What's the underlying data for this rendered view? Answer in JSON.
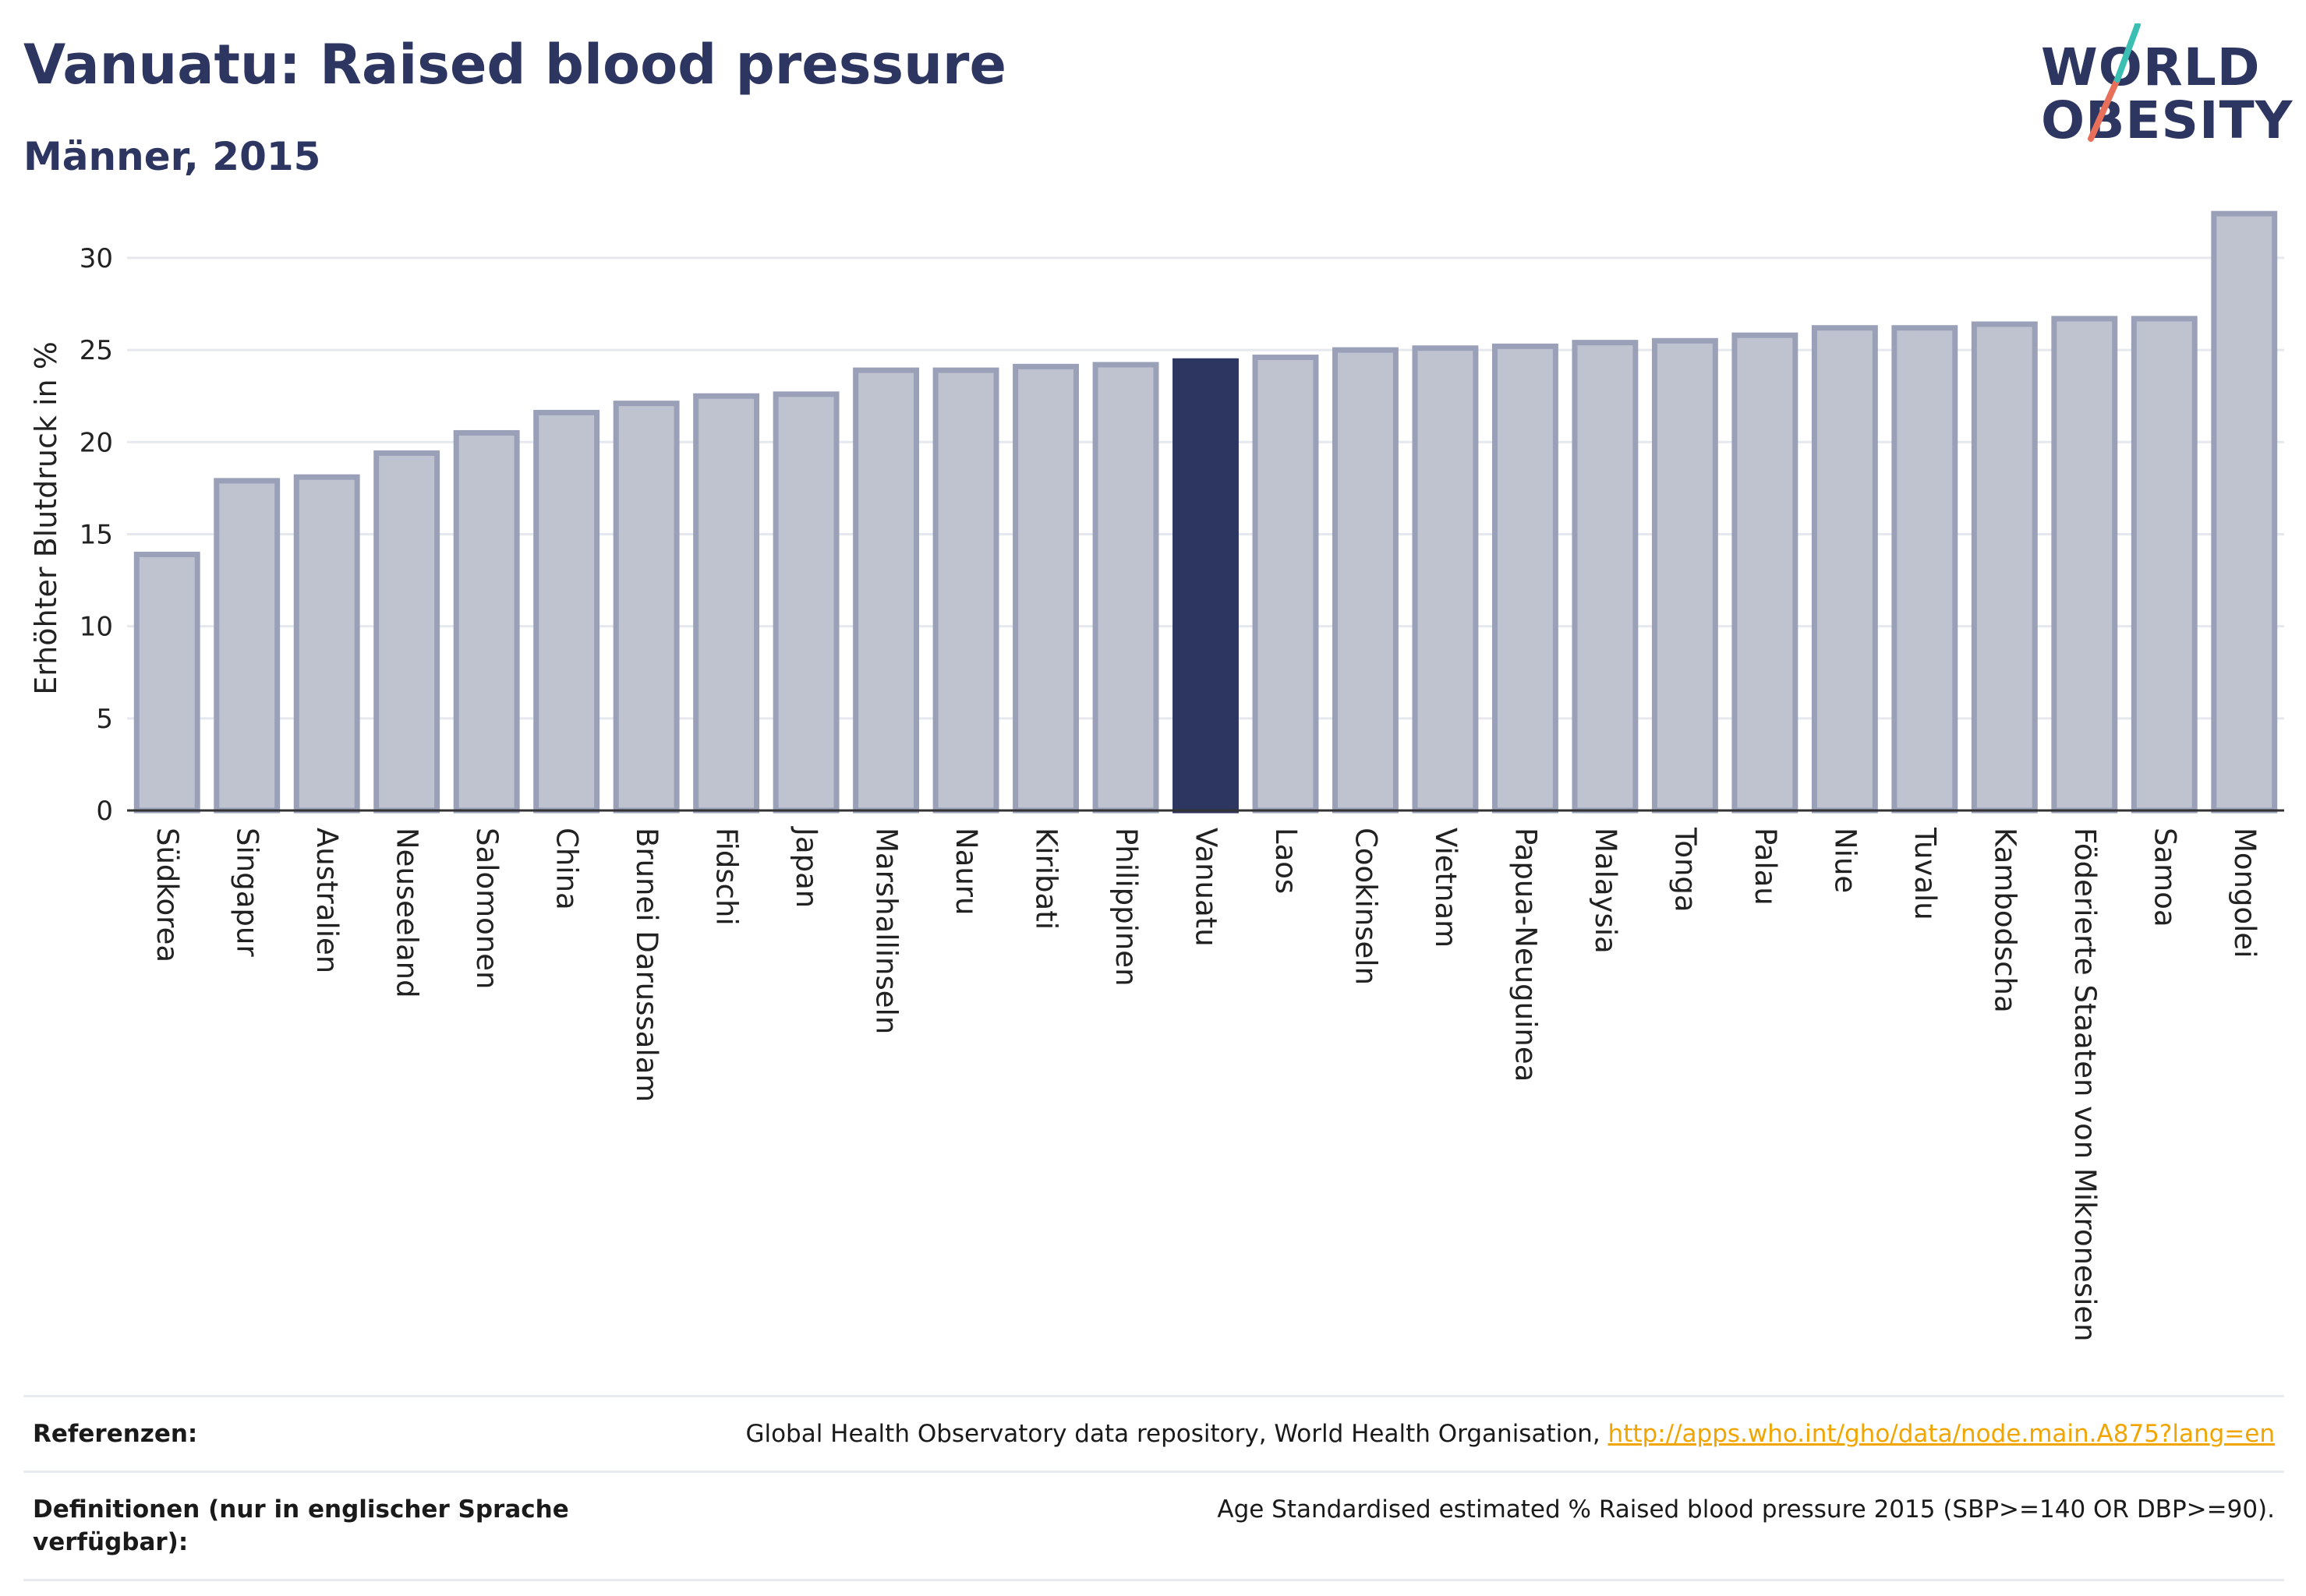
{
  "header": {
    "title": "Vanuatu: Raised blood pressure",
    "subtitle": "Männer, 2015"
  },
  "logo": {
    "line1": "WORLD",
    "line2": "OBESITY",
    "accent_colors": [
      "#3bbfb2",
      "#e8705a"
    ]
  },
  "colors": {
    "bar": "#bfc2cf",
    "bar_border": "#9aa0b8",
    "highlight": "#2d3561",
    "grid": "#e6e8ef",
    "axis": "#333333"
  },
  "chart_data": {
    "type": "bar",
    "title": "",
    "xlabel": "",
    "ylabel": "Erhöhter Blutdruck in %",
    "ylim": [
      0,
      33
    ],
    "yticks": [
      0,
      5,
      10,
      15,
      20,
      25,
      30
    ],
    "grid": true,
    "highlight": "Vanuatu",
    "categories": [
      "Südkorea",
      "Singapur",
      "Australien",
      "Neuseeland",
      "Salomonen",
      "China",
      "Brunei Darussalam",
      "Fidschi",
      "Japan",
      "Marshallinseln",
      "Nauru",
      "Kiribati",
      "Philippinen",
      "Vanuatu",
      "Laos",
      "Cookinseln",
      "Vietnam",
      "Papua-Neuguinea",
      "Malaysia",
      "Tonga",
      "Palau",
      "Niue",
      "Tuvalu",
      "Kambodscha",
      "Föderierte Staaten von Mikronesien",
      "Samoa",
      "Mongolei"
    ],
    "values": [
      13.9,
      17.9,
      18.1,
      19.4,
      20.5,
      21.6,
      22.1,
      22.5,
      22.6,
      23.9,
      23.9,
      24.1,
      24.2,
      24.4,
      24.6,
      25.0,
      25.1,
      25.2,
      25.4,
      25.5,
      25.8,
      26.2,
      26.2,
      26.4,
      26.7,
      26.7,
      32.4
    ]
  },
  "references": {
    "ref_label": "Referenzen:",
    "ref_text": "Global Health Observatory data repository, World Health Organisation, ",
    "ref_link": "http://apps.who.int/gho/data/node.main.A875?lang=en",
    "def_label": "Definitionen (nur in englischer Sprache verfügbar):",
    "def_text": "Age Standardised estimated % Raised blood pressure 2015 (SBP>=140 OR DBP>=90)."
  }
}
